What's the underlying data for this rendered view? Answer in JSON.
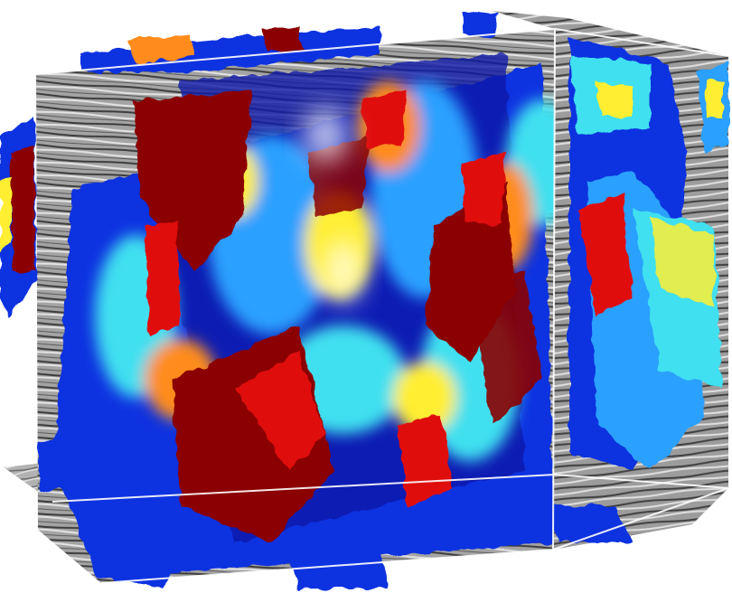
{
  "scene": {
    "subject": "3d-seismic-volume-with-fault-attribute-surfaces",
    "colors": {
      "background": "#ffffff",
      "seismic_dark": "#3a3a3a",
      "seismic_mid": "#9a9a9a",
      "seismic_light": "#e6e6e6",
      "wireframe": "#ffffff",
      "attr_darkred": "#8b0000",
      "attr_red": "#e01010",
      "attr_orange": "#ff8c1a",
      "attr_yellow": "#ffee33",
      "attr_cyan": "#3fe0f0",
      "attr_lightblue": "#2aa0ff",
      "attr_blue": "#1030e0",
      "attr_navy": "#0a1aa8"
    }
  }
}
